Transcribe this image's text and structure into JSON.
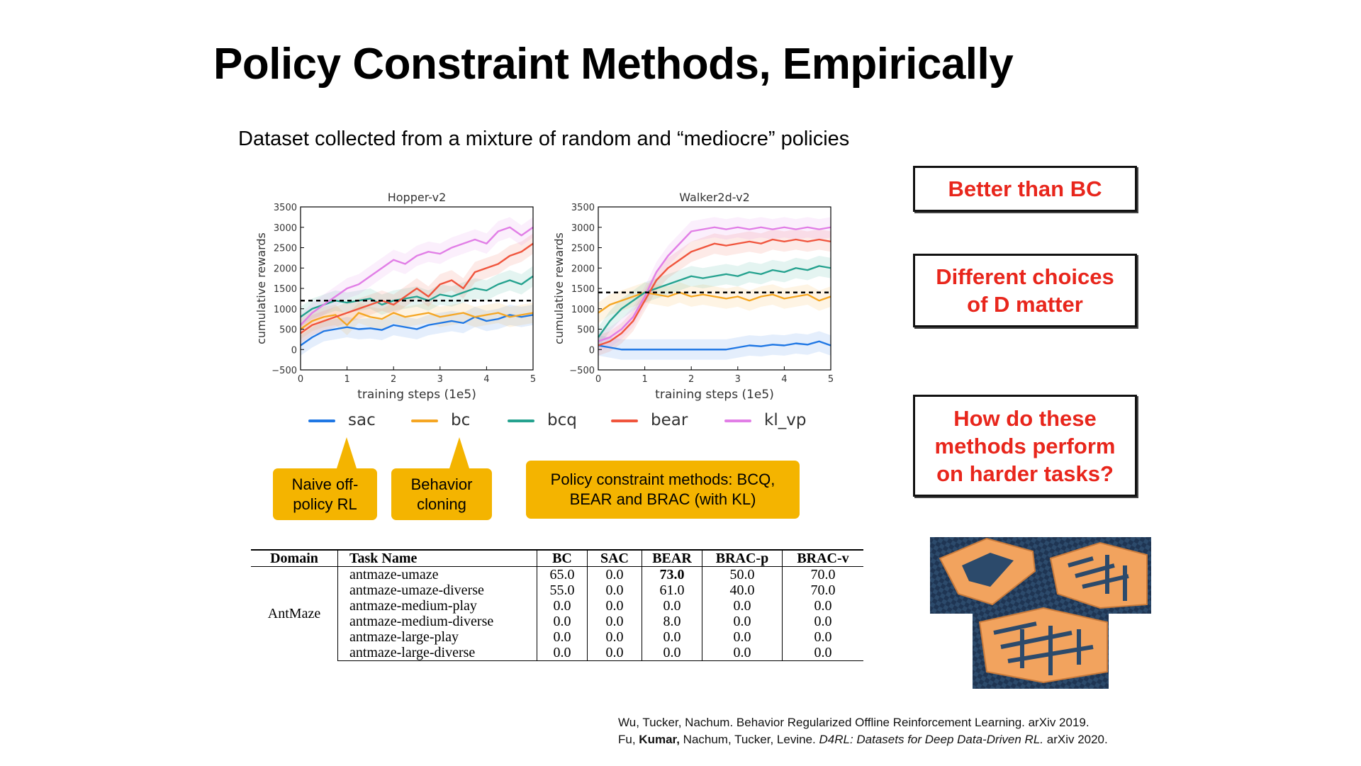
{
  "title": "Policy Constraint Methods, Empirically",
  "subtitle": "Dataset collected from a mixture of random and “mediocre” policies",
  "callouts": {
    "sac": "Naive off-policy RL",
    "bc": "Behavior cloning",
    "constraint": "Policy constraint methods: BCQ, BEAR and BRAC (with KL)"
  },
  "notes": [
    "Better than BC",
    "Different choices of D matter",
    "How do these methods perform on harder tasks?"
  ],
  "colors": {
    "sac": "#1f77e4",
    "bc": "#f5a623",
    "bcq": "#25a28f",
    "bear": "#f0553d",
    "kl_vp": "#e17ee6",
    "note_text": "#e8261c",
    "callout_bg": "#f4b400"
  },
  "legend": [
    "sac",
    "bc",
    "bcq",
    "bear",
    "kl_vp"
  ],
  "chart_data": [
    {
      "type": "line",
      "title": "Hopper-v2",
      "xlabel": "training steps (1e5)",
      "ylabel": "cumulative rewards",
      "xlim": [
        0,
        5
      ],
      "ylim": [
        -500,
        3500
      ],
      "xticks": [
        "0",
        "1",
        "2",
        "3",
        "4",
        "5"
      ],
      "yticks": [
        "−500",
        "0",
        "500",
        "1000",
        "1500",
        "2000",
        "2500",
        "3000",
        "3500"
      ],
      "reference_line": 1200,
      "x": [
        0,
        0.25,
        0.5,
        0.75,
        1,
        1.25,
        1.5,
        1.75,
        2,
        2.25,
        2.5,
        2.75,
        3,
        3.25,
        3.5,
        3.75,
        4,
        4.25,
        4.5,
        4.75,
        5
      ],
      "series": [
        {
          "name": "sac",
          "values": [
            100,
            300,
            450,
            500,
            550,
            500,
            520,
            480,
            600,
            550,
            500,
            600,
            650,
            700,
            650,
            800,
            700,
            750,
            850,
            800,
            850
          ]
        },
        {
          "name": "bc",
          "values": [
            500,
            700,
            800,
            850,
            600,
            900,
            800,
            750,
            900,
            800,
            850,
            900,
            800,
            850,
            900,
            800,
            850,
            900,
            800,
            850,
            900
          ]
        },
        {
          "name": "bcq",
          "values": [
            800,
            1000,
            1100,
            1200,
            1150,
            1200,
            1250,
            1100,
            1200,
            1250,
            1300,
            1200,
            1350,
            1300,
            1400,
            1500,
            1450,
            1600,
            1700,
            1600,
            1800
          ]
        },
        {
          "name": "bear",
          "values": [
            400,
            600,
            700,
            800,
            900,
            1000,
            1100,
            1200,
            1100,
            1300,
            1500,
            1300,
            1600,
            1700,
            1500,
            1900,
            2000,
            2100,
            2300,
            2400,
            2600
          ]
        },
        {
          "name": "kl_vp",
          "values": [
            600,
            900,
            1100,
            1300,
            1500,
            1600,
            1800,
            2000,
            2200,
            2100,
            2300,
            2400,
            2350,
            2500,
            2600,
            2700,
            2600,
            2900,
            3000,
            2800,
            3000
          ]
        }
      ]
    },
    {
      "type": "line",
      "title": "Walker2d-v2",
      "xlabel": "training steps (1e5)",
      "ylabel": "cumulative rewards",
      "xlim": [
        0,
        5
      ],
      "ylim": [
        -500,
        3500
      ],
      "xticks": [
        "0",
        "1",
        "2",
        "3",
        "4",
        "5"
      ],
      "yticks": [
        "−500",
        "0",
        "500",
        "1000",
        "1500",
        "2000",
        "2500",
        "3000",
        "3500"
      ],
      "reference_line": 1400,
      "x": [
        0,
        0.25,
        0.5,
        0.75,
        1,
        1.25,
        1.5,
        1.75,
        2,
        2.25,
        2.5,
        2.75,
        3,
        3.25,
        3.5,
        3.75,
        4,
        4.25,
        4.5,
        4.75,
        5
      ],
      "series": [
        {
          "name": "sac",
          "values": [
            100,
            50,
            0,
            0,
            0,
            0,
            0,
            0,
            0,
            0,
            0,
            0,
            50,
            100,
            80,
            120,
            100,
            150,
            120,
            200,
            100
          ]
        },
        {
          "name": "bc",
          "values": [
            900,
            1100,
            1200,
            1300,
            1400,
            1350,
            1300,
            1400,
            1300,
            1350,
            1300,
            1250,
            1300,
            1200,
            1300,
            1350,
            1250,
            1300,
            1350,
            1200,
            1300
          ]
        },
        {
          "name": "bcq",
          "values": [
            300,
            700,
            1000,
            1200,
            1400,
            1500,
            1600,
            1700,
            1800,
            1750,
            1800,
            1850,
            1800,
            1900,
            1850,
            1950,
            1900,
            2000,
            1950,
            2050,
            2000
          ]
        },
        {
          "name": "bear",
          "values": [
            100,
            200,
            400,
            700,
            1200,
            1700,
            2000,
            2200,
            2400,
            2500,
            2600,
            2550,
            2600,
            2650,
            2600,
            2700,
            2650,
            2700,
            2650,
            2700,
            2650
          ]
        },
        {
          "name": "kl_vp",
          "values": [
            200,
            300,
            500,
            800,
            1300,
            1900,
            2300,
            2600,
            2900,
            2950,
            3000,
            2950,
            3000,
            2950,
            3000,
            2950,
            3000,
            2950,
            3000,
            2950,
            3000
          ]
        }
      ]
    }
  ],
  "table": {
    "headers": [
      "Domain",
      "Task Name",
      "BC",
      "SAC",
      "BEAR",
      "BRAC-p",
      "BRAC-v"
    ],
    "domain": "AntMaze",
    "rows": [
      [
        "antmaze-umaze",
        "65.0",
        "0.0",
        "73.0",
        "50.0",
        "70.0"
      ],
      [
        "antmaze-umaze-diverse",
        "55.0",
        "0.0",
        "61.0",
        "40.0",
        "70.0"
      ],
      [
        "antmaze-medium-play",
        "0.0",
        "0.0",
        "0.0",
        "0.0",
        "0.0"
      ],
      [
        "antmaze-medium-diverse",
        "0.0",
        "0.0",
        "8.0",
        "0.0",
        "0.0"
      ],
      [
        "antmaze-large-play",
        "0.0",
        "0.0",
        "0.0",
        "0.0",
        "0.0"
      ],
      [
        "antmaze-large-diverse",
        "0.0",
        "0.0",
        "0.0",
        "0.0",
        "0.0"
      ]
    ]
  },
  "citations": {
    "line1": "Wu, Tucker, Nachum. Behavior Regularized Offline Reinforcement Learning. arXiv 2019.",
    "line2_prefix": "Fu, ",
    "line2_bold": "Kumar,",
    "line2_mid": " Nachum, Tucker, Levine. ",
    "line2_italic": "D4RL: Datasets for Deep Data-Driven RL.",
    "line2_suffix": " arXiv 2020."
  }
}
